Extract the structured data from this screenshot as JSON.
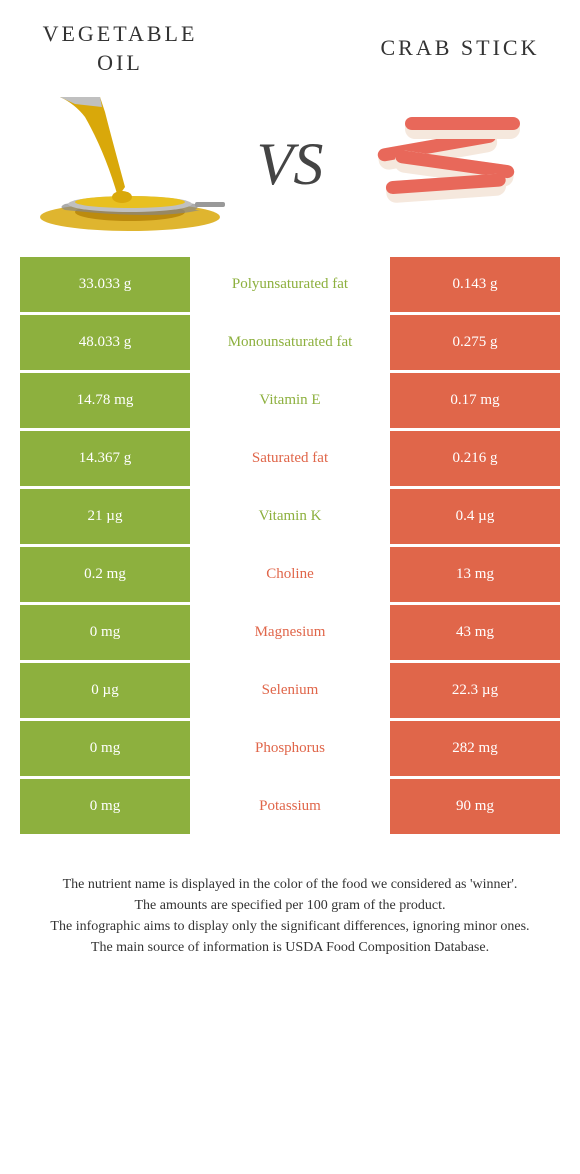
{
  "colors": {
    "green": "#8db03e",
    "orange": "#e0664a",
    "label_green": "#8db03e",
    "label_orange": "#e0664a",
    "text": "#333333",
    "white": "#ffffff"
  },
  "food_left": {
    "name": "VEGETABLE OIL"
  },
  "food_right": {
    "name": "CRAB STICK"
  },
  "vs": "VS",
  "rows": [
    {
      "left": "33.033 g",
      "label": "Polyunsaturated fat",
      "right": "0.143 g",
      "winner": "left"
    },
    {
      "left": "48.033 g",
      "label": "Monounsaturated fat",
      "right": "0.275 g",
      "winner": "left"
    },
    {
      "left": "14.78 mg",
      "label": "Vitamin E",
      "right": "0.17 mg",
      "winner": "left"
    },
    {
      "left": "14.367 g",
      "label": "Saturated fat",
      "right": "0.216 g",
      "winner": "right"
    },
    {
      "left": "21 µg",
      "label": "Vitamin K",
      "right": "0.4 µg",
      "winner": "left"
    },
    {
      "left": "0.2 mg",
      "label": "Choline",
      "right": "13 mg",
      "winner": "right"
    },
    {
      "left": "0 mg",
      "label": "Magnesium",
      "right": "43 mg",
      "winner": "right"
    },
    {
      "left": "0 µg",
      "label": "Selenium",
      "right": "22.3 µg",
      "winner": "right"
    },
    {
      "left": "0 mg",
      "label": "Phosphorus",
      "right": "282 mg",
      "winner": "right"
    },
    {
      "left": "0 mg",
      "label": "Potassium",
      "right": "90 mg",
      "winner": "right"
    }
  ],
  "footer": {
    "line1": "The nutrient name is displayed in the color of the food we considered as 'winner'.",
    "line2": "The amounts are specified per 100 gram of the product.",
    "line3": "The infographic aims to display only the significant differences, ignoring minor ones.",
    "line4": "The main source of information is USDA Food Composition Database."
  }
}
